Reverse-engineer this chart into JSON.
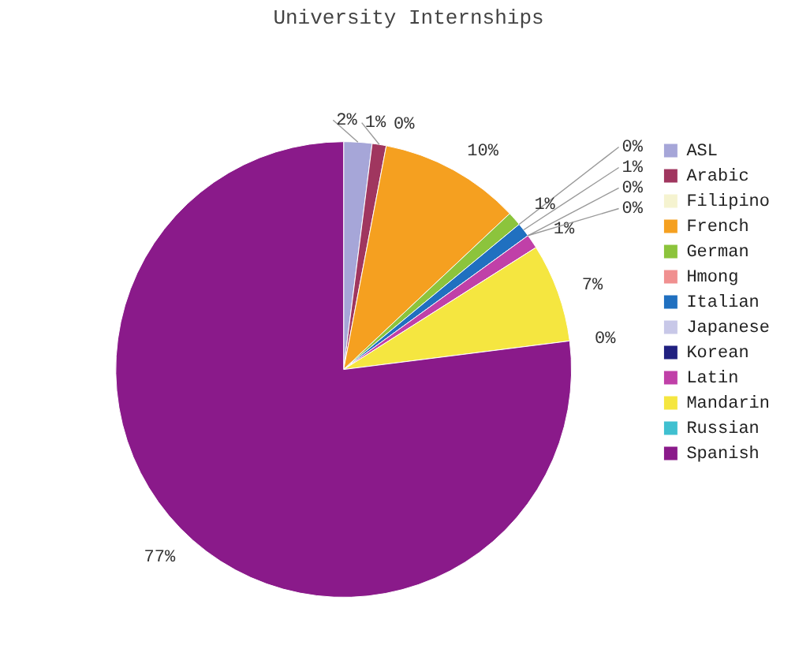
{
  "chart_data": {
    "type": "pie",
    "title": "University Internships",
    "categories": [
      "ASL",
      "Arabic",
      "Filipino",
      "French",
      "German",
      "Hmong",
      "Italian",
      "Japanese",
      "Korean",
      "Latin",
      "Mandarin",
      "Russian",
      "Spanish"
    ],
    "values": [
      2,
      1,
      0,
      10,
      1,
      0,
      1,
      0,
      0,
      1,
      7,
      0,
      77
    ],
    "value_labels": [
      "2%",
      "1%",
      "0%",
      "10%",
      "1%",
      "0%",
      "1%",
      "0%",
      "0%",
      "1%",
      "7%",
      "0%",
      "77%"
    ],
    "colors": [
      "#a6a6d8",
      "#a0365f",
      "#f5f3d0",
      "#f5a020",
      "#8cc43c",
      "#f09090",
      "#2070c0",
      "#c8c8e8",
      "#202080",
      "#c040a8",
      "#f5e640",
      "#40c0d0",
      "#8a1a8a"
    ],
    "legend": "right"
  }
}
